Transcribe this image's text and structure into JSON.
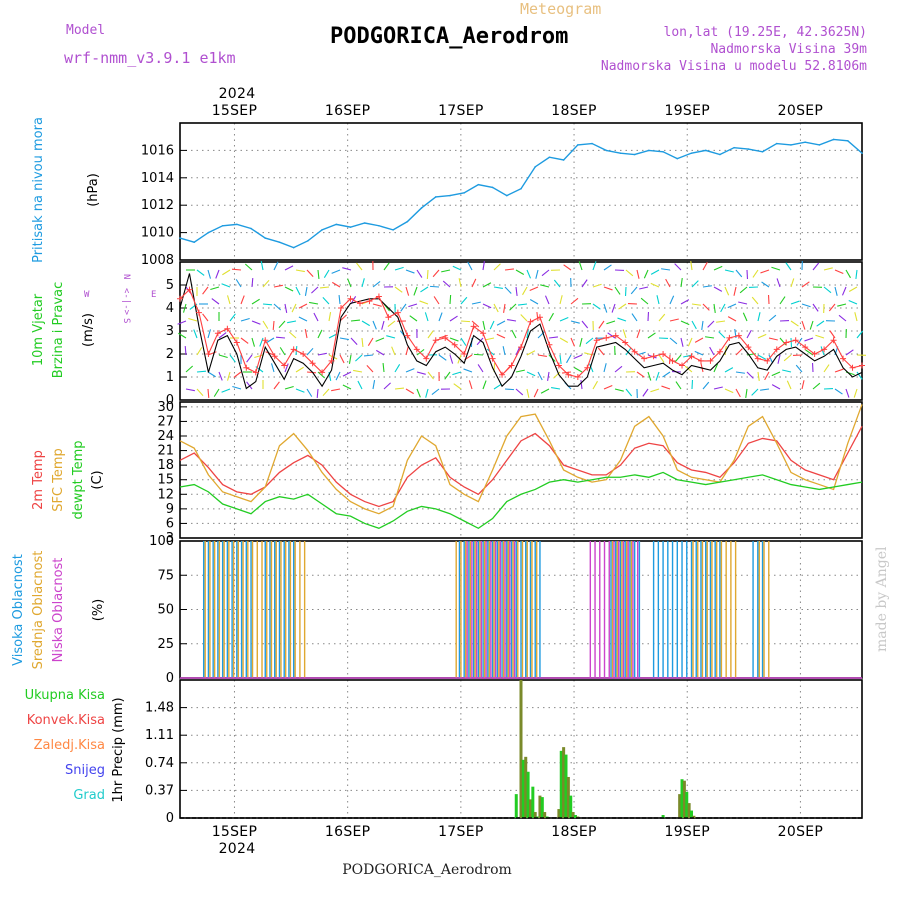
{
  "header": {
    "model_label": "Model",
    "model_name": "wrf-nmm_v3.9.1 e1km",
    "meteogram_label": "Meteogram",
    "station_title": "PODGORICA_Aerodrom",
    "lonlat": "lon,lat (19.25E, 42.3625N)",
    "altitude": "Nadmorska Visina 39m",
    "model_altitude": "Nadmorska Visina u modelu 52.8106m",
    "year_top": "2024",
    "year_bottom": "2024",
    "bottom_station": "PODGORICA_Aerodrom",
    "made_by": "made by Angel"
  },
  "colors": {
    "pressure": "#1e9be0",
    "wind_speed": "#000000",
    "gust": "#ff4040",
    "temp2m": "#ee4444",
    "sfc_temp": "#e0a830",
    "dewpoint": "#22cc22",
    "cloud_high": "#1e9be0",
    "cloud_mid": "#e0a830",
    "cloud_low": "#cc44cc",
    "precip_total": "#22cc22",
    "precip_conv": "#ee4444",
    "model_label": "#b050d0"
  },
  "chart_data": [
    {
      "type": "line",
      "panel": "pressure",
      "ylabel": "(hPa)",
      "side_label": "Pritisak na nivou mora",
      "ylim": [
        1008,
        1018
      ],
      "yticks": [
        1008,
        1010,
        1012,
        1014,
        1016
      ],
      "x_day_ticks": [
        "15SEP",
        "16SEP",
        "17SEP",
        "18SEP",
        "19SEP",
        "20SEP"
      ],
      "x_hours": [
        0,
        3,
        6,
        9,
        12,
        15,
        18,
        21,
        24,
        27,
        30,
        33,
        36,
        39,
        42,
        45,
        48,
        51,
        54,
        57,
        60,
        63,
        66,
        69,
        72,
        75,
        78,
        81,
        84,
        87,
        90,
        93,
        96,
        99,
        102,
        105,
        108,
        111,
        114,
        117,
        120,
        123,
        126,
        129,
        132,
        135,
        138,
        141,
        144
      ],
      "values": [
        1009.6,
        1009.3,
        1010.0,
        1010.5,
        1010.6,
        1010.3,
        1009.6,
        1009.3,
        1008.9,
        1009.4,
        1010.2,
        1010.6,
        1010.4,
        1010.7,
        1010.5,
        1010.2,
        1010.8,
        1011.8,
        1012.6,
        1012.7,
        1012.9,
        1013.5,
        1013.3,
        1012.7,
        1013.2,
        1014.8,
        1015.5,
        1015.3,
        1016.4,
        1016.5,
        1016.0,
        1015.8,
        1015.7,
        1016.0,
        1015.9,
        1015.4,
        1015.8,
        1016.0,
        1015.7,
        1016.2,
        1016.1,
        1015.9,
        1016.5,
        1016.4,
        1016.6,
        1016.4,
        1016.8,
        1016.7,
        1015.8
      ]
    },
    {
      "type": "line",
      "panel": "wind",
      "ylabel": "(m/s)",
      "side_label_1": "10m Vjetar",
      "side_label_2": "Brzina i Pravac",
      "compass": [
        "N",
        "<-|->",
        "W",
        "E",
        "S"
      ],
      "ylim": [
        0,
        6
      ],
      "yticks": [
        0,
        1,
        2,
        3,
        4,
        5
      ],
      "series": [
        {
          "role": "speed",
          "x_hours": [
            0,
            2,
            4,
            6,
            8,
            10,
            12,
            14,
            16,
            18,
            20,
            22,
            24,
            26,
            28,
            30,
            32,
            34,
            36,
            38,
            40,
            42,
            44,
            46,
            48,
            50,
            52,
            54,
            56,
            58,
            60,
            62,
            64,
            66,
            68,
            70,
            72,
            74,
            76,
            78,
            80,
            82,
            84,
            86,
            88,
            90,
            92,
            94,
            96,
            98,
            100,
            102,
            104,
            106,
            108,
            110,
            112,
            114,
            116,
            118,
            120,
            122,
            124,
            126,
            128,
            130,
            132,
            134,
            136,
            138,
            140,
            142,
            144
          ],
          "values": [
            4.0,
            5.5,
            3.2,
            1.2,
            2.6,
            2.8,
            2.0,
            0.5,
            0.8,
            2.3,
            1.6,
            0.9,
            1.8,
            1.6,
            1.2,
            0.6,
            1.3,
            3.6,
            4.2,
            4.3,
            4.4,
            4.4,
            4.0,
            3.6,
            2.4,
            1.7,
            1.5,
            2.1,
            2.3,
            2.0,
            1.6,
            2.8,
            2.5,
            1.4,
            0.6,
            1.0,
            1.9,
            3.0,
            3.3,
            2.1,
            1.1,
            0.6,
            0.6,
            1.0,
            2.3,
            2.4,
            2.5,
            2.2,
            1.8,
            1.4,
            1.5,
            1.6,
            1.3,
            1.1,
            1.5,
            1.4,
            1.3,
            1.7,
            2.4,
            2.5,
            2.0,
            1.4,
            1.3,
            1.9,
            2.2,
            2.3,
            2.0,
            1.7,
            1.9,
            2.2,
            1.4,
            1.0,
            1.2
          ]
        },
        {
          "role": "gust",
          "x_hours": [
            0,
            2,
            4,
            6,
            8,
            10,
            12,
            14,
            16,
            18,
            20,
            22,
            24,
            26,
            28,
            30,
            32,
            34,
            36,
            38,
            40,
            42,
            44,
            46,
            48,
            50,
            52,
            54,
            56,
            58,
            60,
            62,
            64,
            66,
            68,
            70,
            72,
            74,
            76,
            78,
            80,
            82,
            84,
            86,
            88,
            90,
            92,
            94,
            96,
            98,
            100,
            102,
            104,
            106,
            108,
            110,
            112,
            114,
            116,
            118,
            120,
            122,
            124,
            126,
            128,
            130,
            132,
            134,
            136,
            138,
            140,
            142,
            144
          ],
          "values": [
            4.4,
            4.8,
            3.8,
            2.0,
            2.9,
            3.1,
            2.5,
            1.4,
            1.2,
            2.6,
            1.9,
            1.5,
            2.2,
            2.0,
            1.6,
            1.2,
            1.7,
            4.0,
            4.4,
            4.2,
            4.3,
            4.5,
            3.6,
            3.8,
            2.8,
            2.2,
            1.8,
            2.6,
            2.7,
            2.4,
            2.0,
            3.2,
            2.9,
            1.8,
            1.1,
            1.5,
            2.3,
            3.4,
            3.6,
            2.4,
            1.5,
            1.1,
            1.0,
            1.4,
            2.6,
            2.7,
            2.8,
            2.5,
            2.1,
            1.8,
            1.9,
            2.0,
            1.7,
            1.5,
            1.9,
            1.7,
            1.7,
            2.1,
            2.7,
            2.8,
            2.3,
            1.8,
            1.7,
            2.2,
            2.5,
            2.6,
            2.3,
            2.0,
            2.2,
            2.6,
            1.8,
            1.4,
            1.5
          ]
        }
      ]
    },
    {
      "type": "line",
      "panel": "temperature",
      "ylabel": "(C)",
      "side_labels": [
        "2m Temp",
        "SFC Temp",
        "dewpt Temp"
      ],
      "ylim": [
        3,
        31
      ],
      "yticks": [
        3,
        6,
        9,
        12,
        15,
        18,
        21,
        24,
        27,
        30
      ],
      "x_hours": [
        0,
        3,
        6,
        9,
        12,
        15,
        18,
        21,
        24,
        27,
        30,
        33,
        36,
        39,
        42,
        45,
        48,
        51,
        54,
        57,
        60,
        63,
        66,
        69,
        72,
        75,
        78,
        81,
        84,
        87,
        90,
        93,
        96,
        99,
        102,
        105,
        108,
        111,
        114,
        117,
        120,
        123,
        126,
        129,
        132,
        135,
        138,
        141,
        144
      ],
      "series": [
        {
          "name": "2m Temp",
          "values": [
            19.0,
            20.5,
            17.5,
            14.0,
            12.5,
            12.0,
            13.5,
            16.5,
            18.5,
            20.0,
            18.0,
            14.5,
            12.0,
            10.5,
            9.5,
            10.5,
            15.5,
            18.0,
            19.5,
            15.5,
            13.5,
            12.0,
            15.0,
            19.0,
            23.0,
            24.5,
            22.0,
            18.0,
            17.0,
            16.0,
            16.0,
            18.0,
            21.5,
            22.5,
            22.0,
            18.5,
            17.0,
            16.5,
            15.5,
            18.5,
            22.5,
            23.5,
            23.0,
            19.0,
            17.0,
            16.0,
            15.0,
            20.5,
            26.0
          ]
        },
        {
          "name": "SFC Temp",
          "values": [
            23.0,
            21.5,
            16.0,
            12.5,
            11.5,
            10.5,
            13.5,
            22.0,
            24.5,
            21.0,
            16.5,
            13.0,
            10.5,
            9.0,
            8.0,
            9.5,
            19.0,
            24.0,
            22.0,
            14.0,
            12.0,
            10.5,
            17.0,
            24.0,
            28.0,
            28.5,
            23.0,
            17.0,
            15.5,
            14.5,
            15.0,
            19.0,
            26.0,
            28.0,
            24.0,
            17.0,
            15.5,
            15.0,
            14.5,
            19.0,
            26.0,
            28.0,
            22.5,
            16.5,
            15.0,
            14.0,
            13.0,
            22.5,
            30.5
          ]
        },
        {
          "name": "dewpt Temp",
          "values": [
            13.5,
            14.0,
            12.5,
            10.0,
            9.0,
            8.0,
            10.5,
            11.5,
            11.0,
            12.0,
            10.0,
            8.0,
            7.5,
            6.0,
            5.0,
            6.5,
            8.5,
            9.5,
            9.0,
            8.0,
            6.5,
            5.0,
            7.0,
            10.5,
            12.0,
            13.0,
            14.5,
            15.0,
            14.5,
            15.0,
            15.5,
            15.5,
            16.0,
            15.5,
            16.5,
            15.0,
            14.5,
            14.0,
            14.5,
            15.0,
            15.5,
            16.0,
            15.0,
            14.0,
            13.5,
            13.0,
            13.5,
            14.0,
            14.5
          ]
        }
      ]
    },
    {
      "type": "bar",
      "panel": "cloud",
      "ylabel": "(%)",
      "side_labels": [
        "Visoka Oblacnost",
        "Srednja Oblacnost",
        "Niska Oblacnost"
      ],
      "ylim": [
        0,
        100
      ],
      "yticks": [
        0,
        25,
        50,
        75,
        100
      ],
      "series": [
        {
          "name": "Visoka Oblacnost",
          "intervals": [
            [
              5,
              15
            ],
            [
              18,
              24
            ],
            [
              59,
              76
            ],
            [
              91,
              97
            ],
            [
              100,
              114
            ],
            [
              121,
              123
            ]
          ],
          "value": 100
        },
        {
          "name": "Srednja Oblacnost",
          "intervals": [
            [
              5,
              16
            ],
            [
              17,
              26
            ],
            [
              58,
              75
            ],
            [
              91,
              95
            ],
            [
              108,
              117
            ],
            [
              122,
              124
            ]
          ],
          "value": 100
        },
        {
          "name": "Niska Oblacnost",
          "intervals": [
            [
              60,
              70
            ],
            [
              86,
              96
            ]
          ],
          "value": 100
        }
      ]
    },
    {
      "type": "bar",
      "panel": "precipitation",
      "ylabel": "1hr Precip (mm)",
      "side_labels": [
        "Ukupna Kisa",
        "Konvek.Kisa",
        "Zaledj.Kisa",
        "Snijeg",
        "Grad"
      ],
      "ylim": [
        0,
        1.85
      ],
      "yticks": [
        0,
        0.37,
        0.74,
        1.11,
        1.48
      ],
      "series": [
        {
          "name": "Ukupna Kisa",
          "x_hours": [
            71,
            72,
            72.5,
            73,
            73.5,
            74,
            74.5,
            75,
            75.5,
            76,
            76.5,
            77,
            77.5,
            80,
            80.5,
            81,
            81.5,
            82,
            82.5,
            83,
            83.5,
            84,
            102,
            105.5,
            106,
            106.5,
            107,
            107.5,
            108,
            108.5
          ],
          "values": [
            0.32,
            1.85,
            0.78,
            0.82,
            0.62,
            0.25,
            0.42,
            0.08,
            0.02,
            0.3,
            0.28,
            0.08,
            0.02,
            0.12,
            0.9,
            0.95,
            0.85,
            0.55,
            0.3,
            0.08,
            0.04,
            0.02,
            0.04,
            0.32,
            0.52,
            0.5,
            0.35,
            0.2,
            0.1,
            0.03
          ]
        }
      ]
    }
  ]
}
